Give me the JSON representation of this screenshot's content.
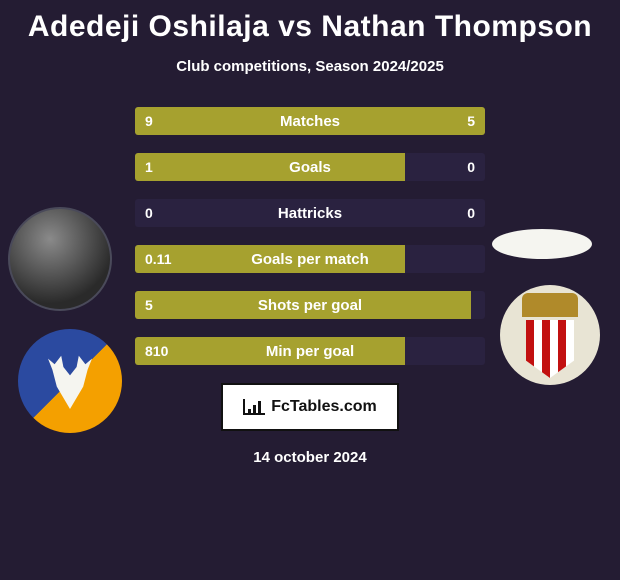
{
  "title": "Adedeji Oshilaja vs Nathan Thompson",
  "subtitle": "Club competitions, Season 2024/2025",
  "footer_brand": "FcTables.com",
  "footer_date": "14 october 2024",
  "colors": {
    "bar_primary": "#a6a12f",
    "bar_empty": "#2a2240",
    "background": "#241c33"
  },
  "stats": [
    {
      "label": "Matches",
      "left_val": "9",
      "right_val": "5",
      "left_pct": 64,
      "right_pct": 36
    },
    {
      "label": "Goals",
      "left_val": "1",
      "right_val": "0",
      "left_pct": 77,
      "right_pct": 0
    },
    {
      "label": "Hattricks",
      "left_val": "0",
      "right_val": "0",
      "left_pct": 0,
      "right_pct": 0
    },
    {
      "label": "Goals per match",
      "left_val": "0.11",
      "right_val": "",
      "left_pct": 77,
      "right_pct": 0
    },
    {
      "label": "Shots per goal",
      "left_val": "5",
      "right_val": "",
      "left_pct": 96,
      "right_pct": 0
    },
    {
      "label": "Min per goal",
      "left_val": "810",
      "right_val": "",
      "left_pct": 77,
      "right_pct": 0
    }
  ]
}
